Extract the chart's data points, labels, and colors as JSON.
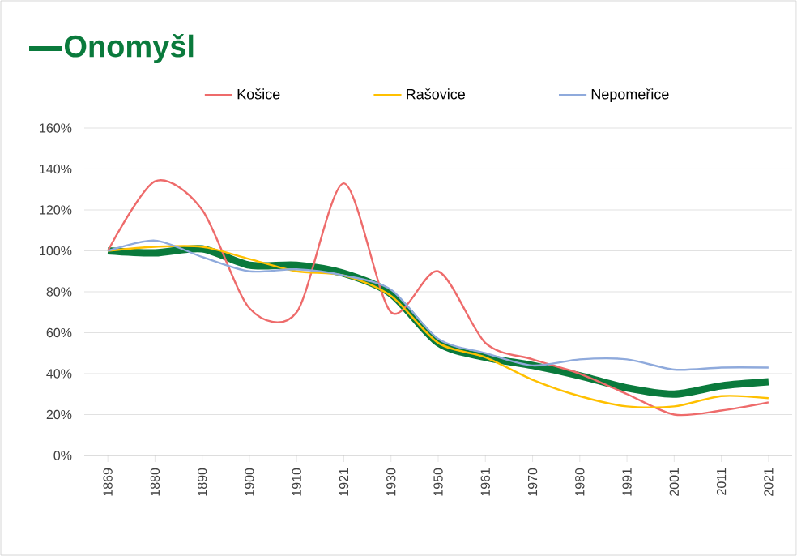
{
  "chart_data": {
    "type": "line",
    "categories": [
      "1869",
      "1880",
      "1890",
      "1900",
      "1910",
      "1921",
      "1930",
      "1950",
      "1961",
      "1970",
      "1980",
      "1991",
      "2001",
      "2011",
      "2021"
    ],
    "series": [
      {
        "name": "Onomyšl",
        "color": "#0a7a3c",
        "values": [
          100,
          99,
          101,
          93,
          93,
          89,
          79,
          55,
          48,
          44,
          39,
          33,
          30,
          34,
          36
        ]
      },
      {
        "name": "Košice",
        "color": "#ee6b6b",
        "values": [
          100,
          134,
          120,
          72,
          70,
          133,
          70,
          90,
          55,
          47,
          40,
          30,
          20,
          22,
          26
        ]
      },
      {
        "name": "Rašovice",
        "color": "#ffc000",
        "values": [
          100,
          102,
          102,
          96,
          90,
          88,
          78,
          55,
          48,
          37,
          29,
          24,
          24,
          29,
          28
        ]
      },
      {
        "name": "Nepomeřice",
        "color": "#8faadc",
        "values": [
          100,
          105,
          97,
          90,
          91,
          88,
          81,
          57,
          50,
          44,
          47,
          47,
          42,
          43,
          43
        ]
      }
    ],
    "ylim": [
      0,
      160
    ],
    "yticks": [
      {
        "value": 0,
        "label": "0%"
      },
      {
        "value": 20,
        "label": "20%"
      },
      {
        "value": 40,
        "label": "40%"
      },
      {
        "value": 60,
        "label": "60%"
      },
      {
        "value": 80,
        "label": "80%"
      },
      {
        "value": 100,
        "label": "100%"
      },
      {
        "value": 120,
        "label": "120%"
      },
      {
        "value": 140,
        "label": "140%"
      },
      {
        "value": 160,
        "label": "160%"
      }
    ],
    "grid": "y",
    "legend": "top",
    "marker": "none",
    "line_style": "solid"
  }
}
